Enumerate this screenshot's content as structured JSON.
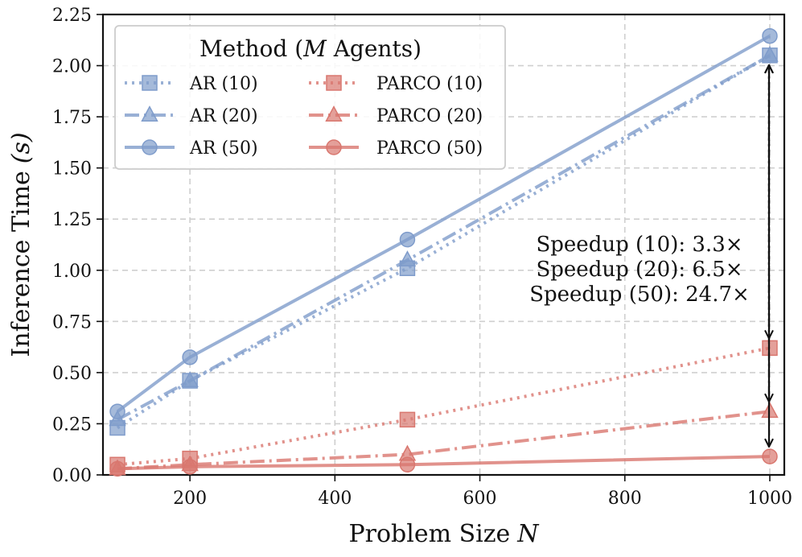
{
  "chart_data": {
    "type": "line",
    "xlabel_text": "Problem Size",
    "xlabel_var": "N",
    "ylabel_text": "Inference Time",
    "ylabel_var": "(s)",
    "x": [
      100,
      200,
      500,
      1000
    ],
    "xlim": [
      80,
      1020
    ],
    "ylim": [
      0,
      2.25
    ],
    "xticks": [
      200,
      400,
      600,
      800,
      1000
    ],
    "yticks": [
      0.0,
      0.25,
      0.5,
      0.75,
      1.0,
      1.25,
      1.5,
      1.75,
      2.0,
      2.25
    ],
    "xtick_labels": [
      "200",
      "400",
      "600",
      "800",
      "1000"
    ],
    "ytick_labels": [
      "0.00",
      "0.25",
      "0.50",
      "0.75",
      "1.00",
      "1.25",
      "1.50",
      "1.75",
      "2.00",
      "2.25"
    ],
    "grid": true,
    "legend": {
      "title_prefix": "Method (",
      "title_var": "M",
      "title_suffix": " Agents)",
      "position": "top-left"
    },
    "colors": {
      "AR": "#7f9ccb",
      "PARCO": "#d9776f"
    },
    "series": [
      {
        "name": "AR (10)",
        "family": "AR",
        "marker": "square",
        "dash": "dotted",
        "values": [
          0.23,
          0.46,
          1.01,
          2.05
        ]
      },
      {
        "name": "AR (20)",
        "family": "AR",
        "marker": "triangle",
        "dash": "dashdot",
        "values": [
          0.27,
          0.46,
          1.05,
          2.05
        ]
      },
      {
        "name": "AR (50)",
        "family": "AR",
        "marker": "circle",
        "dash": "solid",
        "values": [
          0.31,
          0.575,
          1.15,
          2.145
        ]
      },
      {
        "name": "PARCO (10)",
        "family": "PARCO",
        "marker": "square",
        "dash": "dotted",
        "values": [
          0.05,
          0.08,
          0.27,
          0.62
        ]
      },
      {
        "name": "PARCO (20)",
        "family": "PARCO",
        "marker": "triangle",
        "dash": "dashdot",
        "values": [
          0.03,
          0.05,
          0.1,
          0.31
        ]
      },
      {
        "name": "PARCO (50)",
        "family": "PARCO",
        "marker": "circle",
        "dash": "solid",
        "values": [
          0.03,
          0.04,
          0.05,
          0.09
        ]
      }
    ],
    "annotations": [
      {
        "text": "Speedup (10): 3.3×",
        "from": 2.05,
        "to": 0.62,
        "at_x": 1000,
        "style": "dotted"
      },
      {
        "text": "Speedup (20): 6.5×",
        "from": 2.05,
        "to": 0.31,
        "at_x": 1000,
        "style": "dashdot"
      },
      {
        "text": "Speedup (50): 24.7×",
        "from": 2.05,
        "to": 0.09,
        "at_x": 1000,
        "style": "solid"
      }
    ]
  }
}
